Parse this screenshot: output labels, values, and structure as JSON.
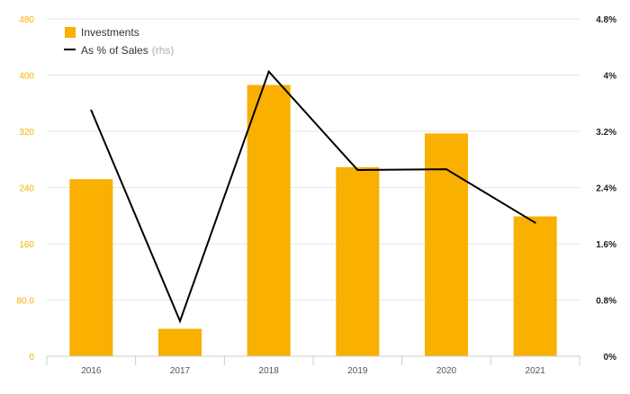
{
  "chart_data": {
    "type": "bar",
    "categories": [
      "2016",
      "2017",
      "2018",
      "2019",
      "2020",
      "2021"
    ],
    "series": [
      {
        "name": "Investments",
        "type": "bar",
        "axis": "left",
        "color": "#f9b000",
        "values": [
          252,
          39,
          386,
          269,
          317,
          199
        ]
      },
      {
        "name": "As % of Sales",
        "name_suffix": "(rhs)",
        "type": "line",
        "axis": "right",
        "color": "#000000",
        "values": [
          3.5,
          0.5,
          4.05,
          2.65,
          2.66,
          1.9
        ]
      }
    ],
    "left_axis": {
      "ticks": [
        0,
        80,
        160,
        240,
        320,
        400,
        480
      ],
      "tick_labels": [
        "0",
        "80.0",
        "160",
        "240",
        "320",
        "400",
        "480"
      ],
      "ylim": [
        0,
        480
      ],
      "label_color": "#f9b000"
    },
    "right_axis": {
      "ticks": [
        0,
        0.8,
        1.6,
        2.4,
        3.2,
        4,
        4.8
      ],
      "tick_labels": [
        "0%",
        "0.8%",
        "1.6%",
        "2.4%",
        "3.2%",
        "4%",
        "4.8%"
      ],
      "ylim": [
        0,
        4.8
      ],
      "label_color": "#222222"
    },
    "grid": true,
    "legend_position": "top-left",
    "colors": {
      "grid": "#e6e6e6",
      "axis_line": "#cccccc",
      "x_labels": "#555555",
      "rhs_suffix": "#aaaaaa"
    }
  }
}
